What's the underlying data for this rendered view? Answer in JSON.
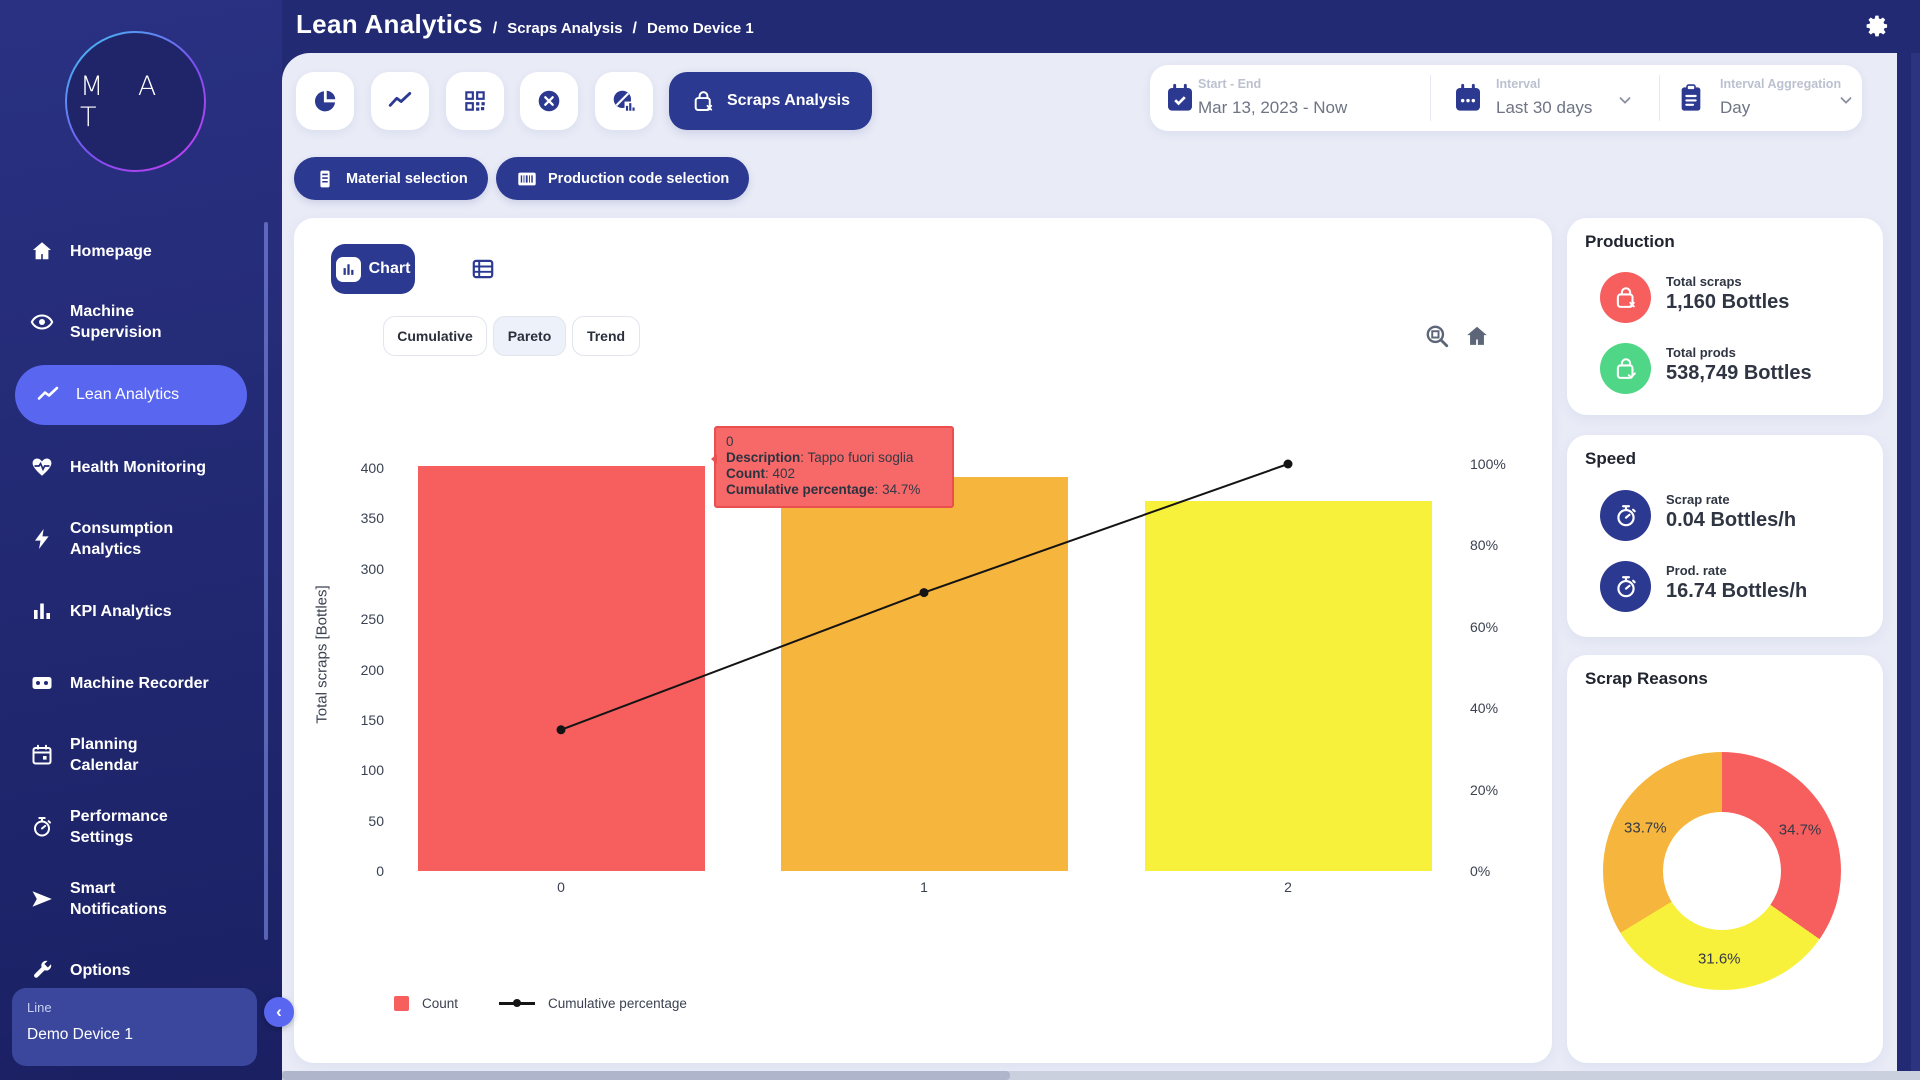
{
  "header": {
    "title": "Lean Analytics",
    "separator": "/",
    "breadcrumb": [
      "Scraps Analysis",
      "Demo Device 1"
    ]
  },
  "logo": {
    "text": "M A T"
  },
  "sidebar": {
    "items": [
      {
        "label": "Homepage"
      },
      {
        "label": "Machine Supervision"
      },
      {
        "label": "Lean Analytics",
        "active": true
      },
      {
        "label": "Health Monitoring"
      },
      {
        "label": "Consumption Analytics"
      },
      {
        "label": "KPI Analytics"
      },
      {
        "label": "Machine Recorder"
      },
      {
        "label": "Planning Calendar"
      },
      {
        "label": "Performance Settings"
      },
      {
        "label": "Smart Notifications"
      },
      {
        "label": "Options"
      }
    ],
    "device": {
      "label": "Line",
      "name": "Demo Device 1"
    },
    "collapse_glyph": "‹"
  },
  "toolbar": {
    "active_label": "Scraps Analysis"
  },
  "filters": {
    "material": "Material selection",
    "production_code": "Production code selection"
  },
  "date_controls": {
    "start_end": {
      "label": "Start - End",
      "value": "Mar 13, 2023 - Now"
    },
    "interval": {
      "label": "Interval",
      "value": "Last 30 days"
    },
    "aggregation": {
      "label": "Interval Aggregation",
      "value": "Day"
    }
  },
  "chart_card": {
    "chart_button": "Chart",
    "tabs": [
      "Cumulative",
      "Pareto",
      "Trend"
    ],
    "active_tab": "Pareto",
    "tooltip": {
      "title": "0",
      "rows": [
        {
          "label": "Description",
          "value": "Tappo fuori soglia"
        },
        {
          "label": "Count",
          "value": "402"
        },
        {
          "label": "Cumulative percentage",
          "value": "34.7%"
        }
      ]
    },
    "legend": [
      {
        "label": "Count",
        "color": "#F75F5F",
        "type": "square"
      },
      {
        "label": "Cumulative percentage",
        "color": "#151515",
        "type": "line"
      }
    ]
  },
  "chart_data": [
    {
      "id": "pareto",
      "type": "bar",
      "categories": [
        "0",
        "1",
        "2"
      ],
      "series": [
        {
          "name": "Count",
          "type": "bar",
          "values": [
            402,
            391,
            367
          ],
          "colors": [
            "#F75F5F",
            "#F6B53D",
            "#F8F13C"
          ]
        },
        {
          "name": "Cumulative percentage",
          "type": "line",
          "values_pct": [
            34.7,
            68.4,
            100
          ]
        }
      ],
      "ylabel": "Total scraps [Bottles]",
      "ylim": [
        0,
        400
      ],
      "yticks": [
        0,
        50,
        100,
        150,
        200,
        250,
        300,
        350,
        400
      ],
      "y2lim": [
        0,
        100
      ],
      "y2ticks": [
        0,
        20,
        40,
        60,
        80,
        100
      ],
      "grid": false,
      "legend_position": "bottom"
    },
    {
      "id": "scrap-reasons-donut",
      "type": "pie",
      "title": "Scrap Reasons",
      "slices": [
        {
          "label": "34.7%",
          "value": 34.7,
          "color": "#F75F5F"
        },
        {
          "label": "31.6%",
          "value": 31.6,
          "color": "#F8F13C"
        },
        {
          "label": "33.7%",
          "value": 33.7,
          "color": "#F6B53D"
        }
      ]
    }
  ],
  "production": {
    "title": "Production",
    "metrics": [
      {
        "label": "Total scraps",
        "value": "1,160 Bottles",
        "color": "#F75F5F"
      },
      {
        "label": "Total prods",
        "value": "538,749 Bottles",
        "color": "#4FD787"
      }
    ]
  },
  "speed": {
    "title": "Speed",
    "metrics": [
      {
        "label": "Scrap rate",
        "value": "0.04 Bottles/h",
        "color": "#2C3990"
      },
      {
        "label": "Prod. rate",
        "value": "16.74 Bottles/h",
        "color": "#2C3990"
      }
    ]
  },
  "scrap_reasons": {
    "title": "Scrap Reasons"
  }
}
